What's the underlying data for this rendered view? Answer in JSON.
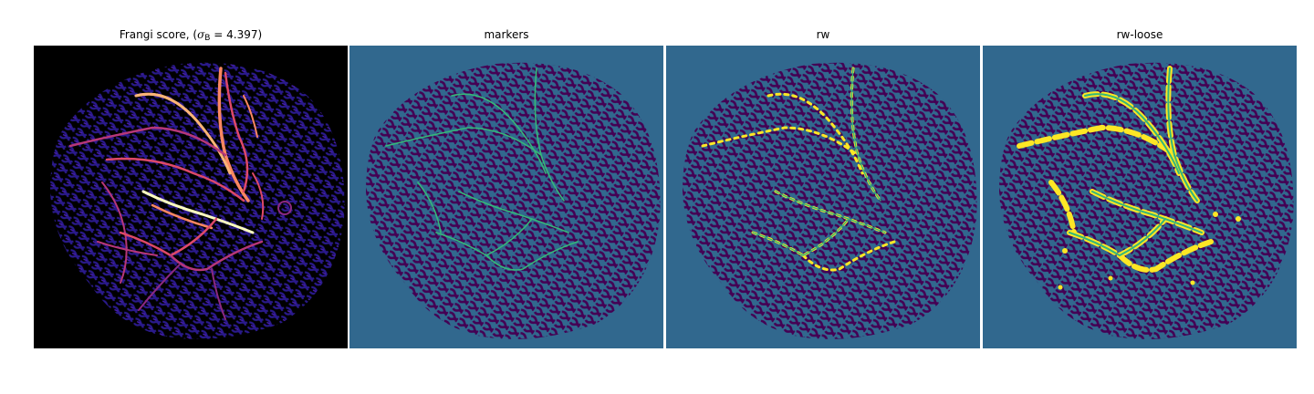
{
  "panels": [
    {
      "title_prefix": "Frangi score, (",
      "title_symbol": "σ",
      "title_subscript": "B",
      "title_suffix": " = 4.397)",
      "colormap": "magma",
      "background": "#000000"
    },
    {
      "title": "markers",
      "colormap": "viridis",
      "background": "#31688e",
      "dark": "#440154",
      "highlight": "#35b779"
    },
    {
      "title": "rw",
      "colormap": "viridis",
      "background": "#31688e",
      "dark": "#440154",
      "highlight": "#35b779",
      "edge": "#fde725"
    },
    {
      "title": "rw-loose",
      "colormap": "viridis",
      "background": "#31688e",
      "dark": "#440154",
      "highlight": "#35b779",
      "edge": "#fde725"
    }
  ]
}
